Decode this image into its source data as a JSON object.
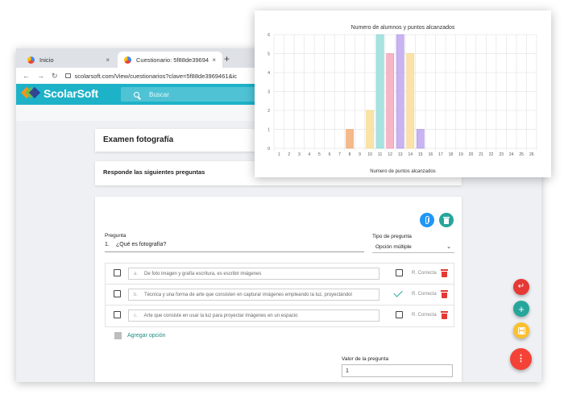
{
  "browser": {
    "tabs": [
      {
        "label": "Inicio",
        "close": "×"
      },
      {
        "label": "Cuestionario: 5f88de3969461",
        "close": "×"
      }
    ],
    "new_tab": "+",
    "url": "scolarsoft.com/View/cuestionarios?clave=5f88de3969461&ic"
  },
  "app": {
    "logo_text": "ScolarSoft",
    "logo_colors": [
      "#f7941d",
      "#ffd200",
      "#6cc04a",
      "#2e3192"
    ],
    "search_placeholder": "Buscar",
    "accent": "#1eb2c8"
  },
  "exam": {
    "title": "Examen fotografía",
    "instructions": "Responde las siguientes preguntas"
  },
  "question": {
    "label": "Pregunta",
    "number": "1.",
    "text": "¿Qué es fotografía?",
    "type_label": "Tipo de pregunta",
    "type_value": "Opción múltiple",
    "options": [
      {
        "letter": "a.",
        "text": "De foto imagen y grafía escritura, es escribir imágenes",
        "correct": false,
        "correct_label": "R. Correcta"
      },
      {
        "letter": "b.",
        "text": "Técnica y una forma de arte que consisten en capturar imágenes empleando la luz, proyectándol",
        "correct": true,
        "correct_label": "R. Correcta"
      },
      {
        "letter": "c.",
        "text": "Arte que consiste en usar la luz para proyectar imágenes en un espacio",
        "correct": false,
        "correct_label": "R. Correcta"
      }
    ],
    "add_option": "Agregar opción",
    "value_label": "Valor de la pregunta",
    "value": "1"
  },
  "icons": {
    "attach": "paperclip-icon",
    "delete": "trash-icon",
    "undo": "undo-icon",
    "add": "plus-icon",
    "save": "save-icon",
    "more": "more-vert-icon"
  },
  "colors": {
    "attach_button": "#2196f3",
    "delete_button": "#26a69a",
    "undo_fab": "#e53935",
    "add_fab": "#26a69a",
    "save_fab": "#fbc02d",
    "more_fab": "#f44336"
  },
  "chart_data": {
    "type": "bar",
    "title": "Numero de alumnos y puntos alcanzados",
    "xlabel": "Numero de puntos alcanzados",
    "ylabel": "",
    "categories": [
      "1",
      "2",
      "3",
      "4",
      "5",
      "6",
      "7",
      "8",
      "9",
      "10",
      "11",
      "12",
      "13",
      "14",
      "15",
      "16",
      "17",
      "18",
      "19",
      "20",
      "21",
      "22",
      "23",
      "24",
      "25",
      "26"
    ],
    "values": [
      0,
      0,
      0,
      0,
      0,
      0,
      0,
      1,
      0,
      2,
      6,
      5,
      6,
      5,
      1,
      0,
      0,
      0,
      0,
      0,
      0,
      0,
      0,
      0,
      0,
      0
    ],
    "bar_colors": {
      "8": "#f5b98a",
      "10": "#fbe3a8",
      "11": "#a8e3e0",
      "12": "#f7b6c6",
      "13": "#c9b3f0",
      "14": "#fbe3a8",
      "15": "#c9b3f0"
    },
    "bar_borders": {
      "8": "#f0a56c",
      "10": "#f6d27a",
      "11": "#7fd3cf",
      "12": "#f28eaa",
      "13": "#aa8ee8",
      "14": "#f6d27a",
      "15": "#aa8ee8"
    },
    "ylim": [
      0,
      6
    ],
    "yticks": [
      "0",
      "1",
      "2",
      "3",
      "4",
      "5",
      "6"
    ],
    "grid": true,
    "legend": "none"
  }
}
